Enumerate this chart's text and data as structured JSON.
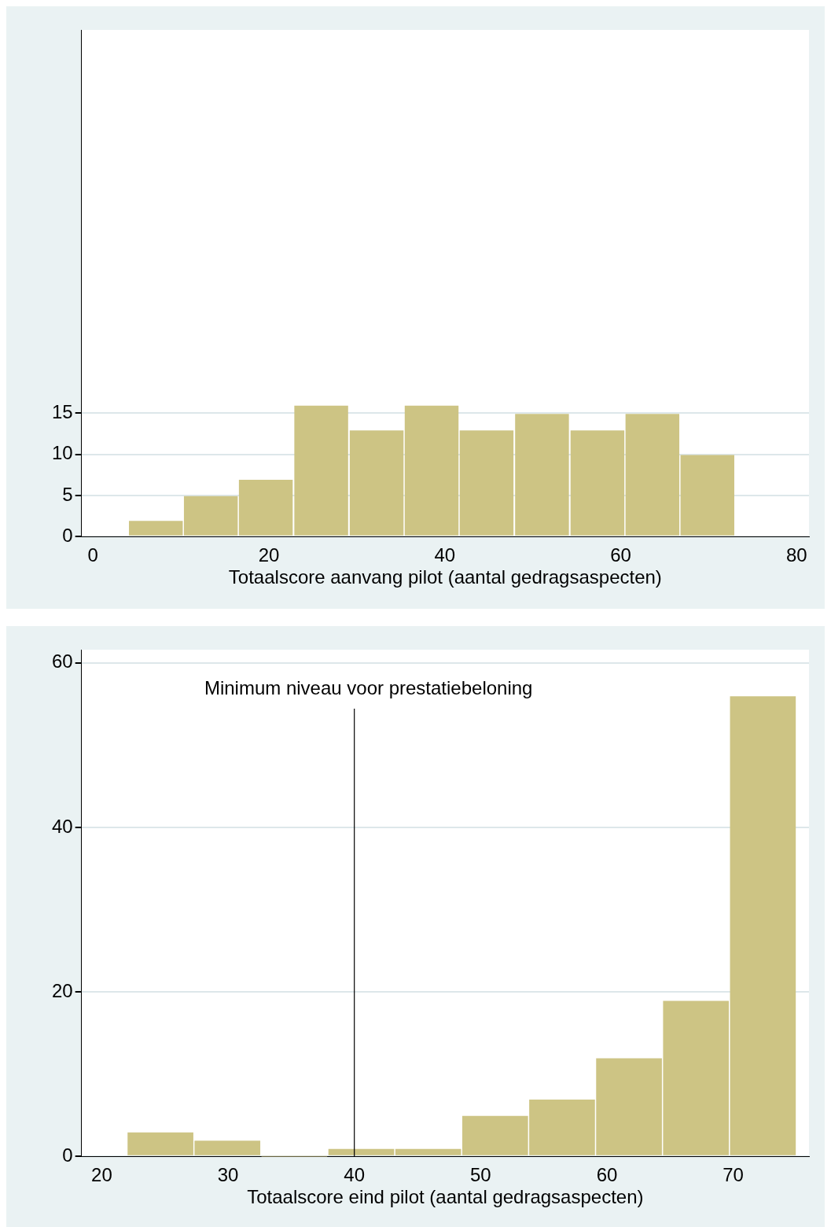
{
  "chart_data": [
    {
      "type": "histogram",
      "bins": [
        4,
        10.3,
        16.5,
        22.8,
        29.1,
        35.4,
        41.6,
        47.9,
        54.2,
        60.5,
        66.7,
        73
      ],
      "values": [
        2,
        5,
        7,
        16,
        13,
        16,
        13,
        15,
        13,
        15,
        10
      ],
      "color": "#cdc484",
      "xlabel": "Totaalscore aanvang pilot (aantal gedragsaspecten)",
      "xlim": [
        -1.3,
        81.4
      ],
      "xticks": [
        0,
        20,
        40,
        60,
        80
      ],
      "ylim": [
        0,
        61.6
      ],
      "yticks": [
        0,
        5,
        10,
        15
      ],
      "grid": "y"
    },
    {
      "type": "histogram",
      "bins": [
        22,
        27.3,
        32.6,
        37.9,
        43.2,
        48.5,
        53.8,
        59.1,
        64.4,
        69.7,
        75
      ],
      "values": [
        3,
        2,
        0,
        1,
        1,
        5,
        7,
        12,
        19,
        56
      ],
      "color": "#cdc484",
      "xlabel": "Totaalscore eind pilot (aantal gedragsaspecten)",
      "xlim": [
        18.4,
        76
      ],
      "xticks": [
        20,
        30,
        40,
        50,
        60,
        70
      ],
      "ylim": [
        0,
        61.6
      ],
      "yticks": [
        0,
        20,
        40,
        60
      ],
      "grid": "y",
      "ref_lines": [
        {
          "axis": "x",
          "value": 40,
          "label": "Minimum niveau voor prestatiebeloning",
          "color": "#000000"
        }
      ]
    }
  ]
}
